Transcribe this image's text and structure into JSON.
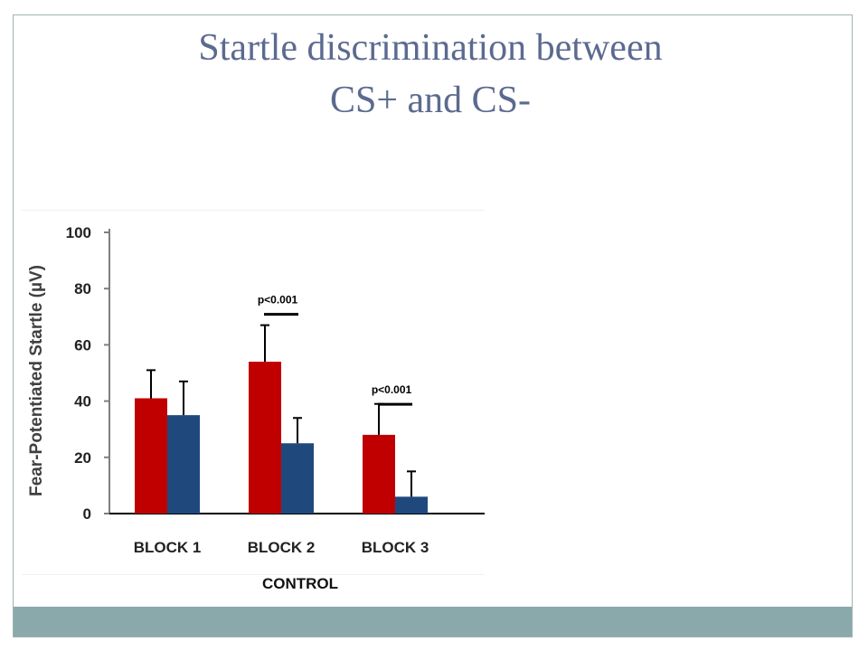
{
  "slide": {
    "title_line1": "Startle discrimination between",
    "title_line2": "CS+ and CS-",
    "group_label": "CONTROL"
  },
  "colors": {
    "cs_plus": "#c00000",
    "cs_minus": "#1f497d",
    "title": "#5b6a8f",
    "footer": "#8aa9aa"
  },
  "chart_data": {
    "type": "bar",
    "title": "",
    "ylabel": "Fear-Potentiated Startle (µV)",
    "xlabel": "",
    "ylim": [
      0,
      100
    ],
    "yticks": [
      0,
      20,
      40,
      60,
      80,
      100
    ],
    "categories": [
      "BLOCK 1",
      "BLOCK 2",
      "BLOCK 3"
    ],
    "series": [
      {
        "values": [
          41,
          54,
          28
        ],
        "errors": [
          10,
          13,
          11
        ]
      },
      {
        "values": [
          35,
          25,
          6
        ],
        "errors": [
          12,
          9,
          9
        ]
      }
    ],
    "annotations": [
      {
        "category": "BLOCK 2",
        "text": "p<0.001",
        "y": 76
      },
      {
        "category": "BLOCK 3",
        "text": "p<0.001",
        "y": 44
      }
    ],
    "grid": false,
    "legend": "none"
  }
}
